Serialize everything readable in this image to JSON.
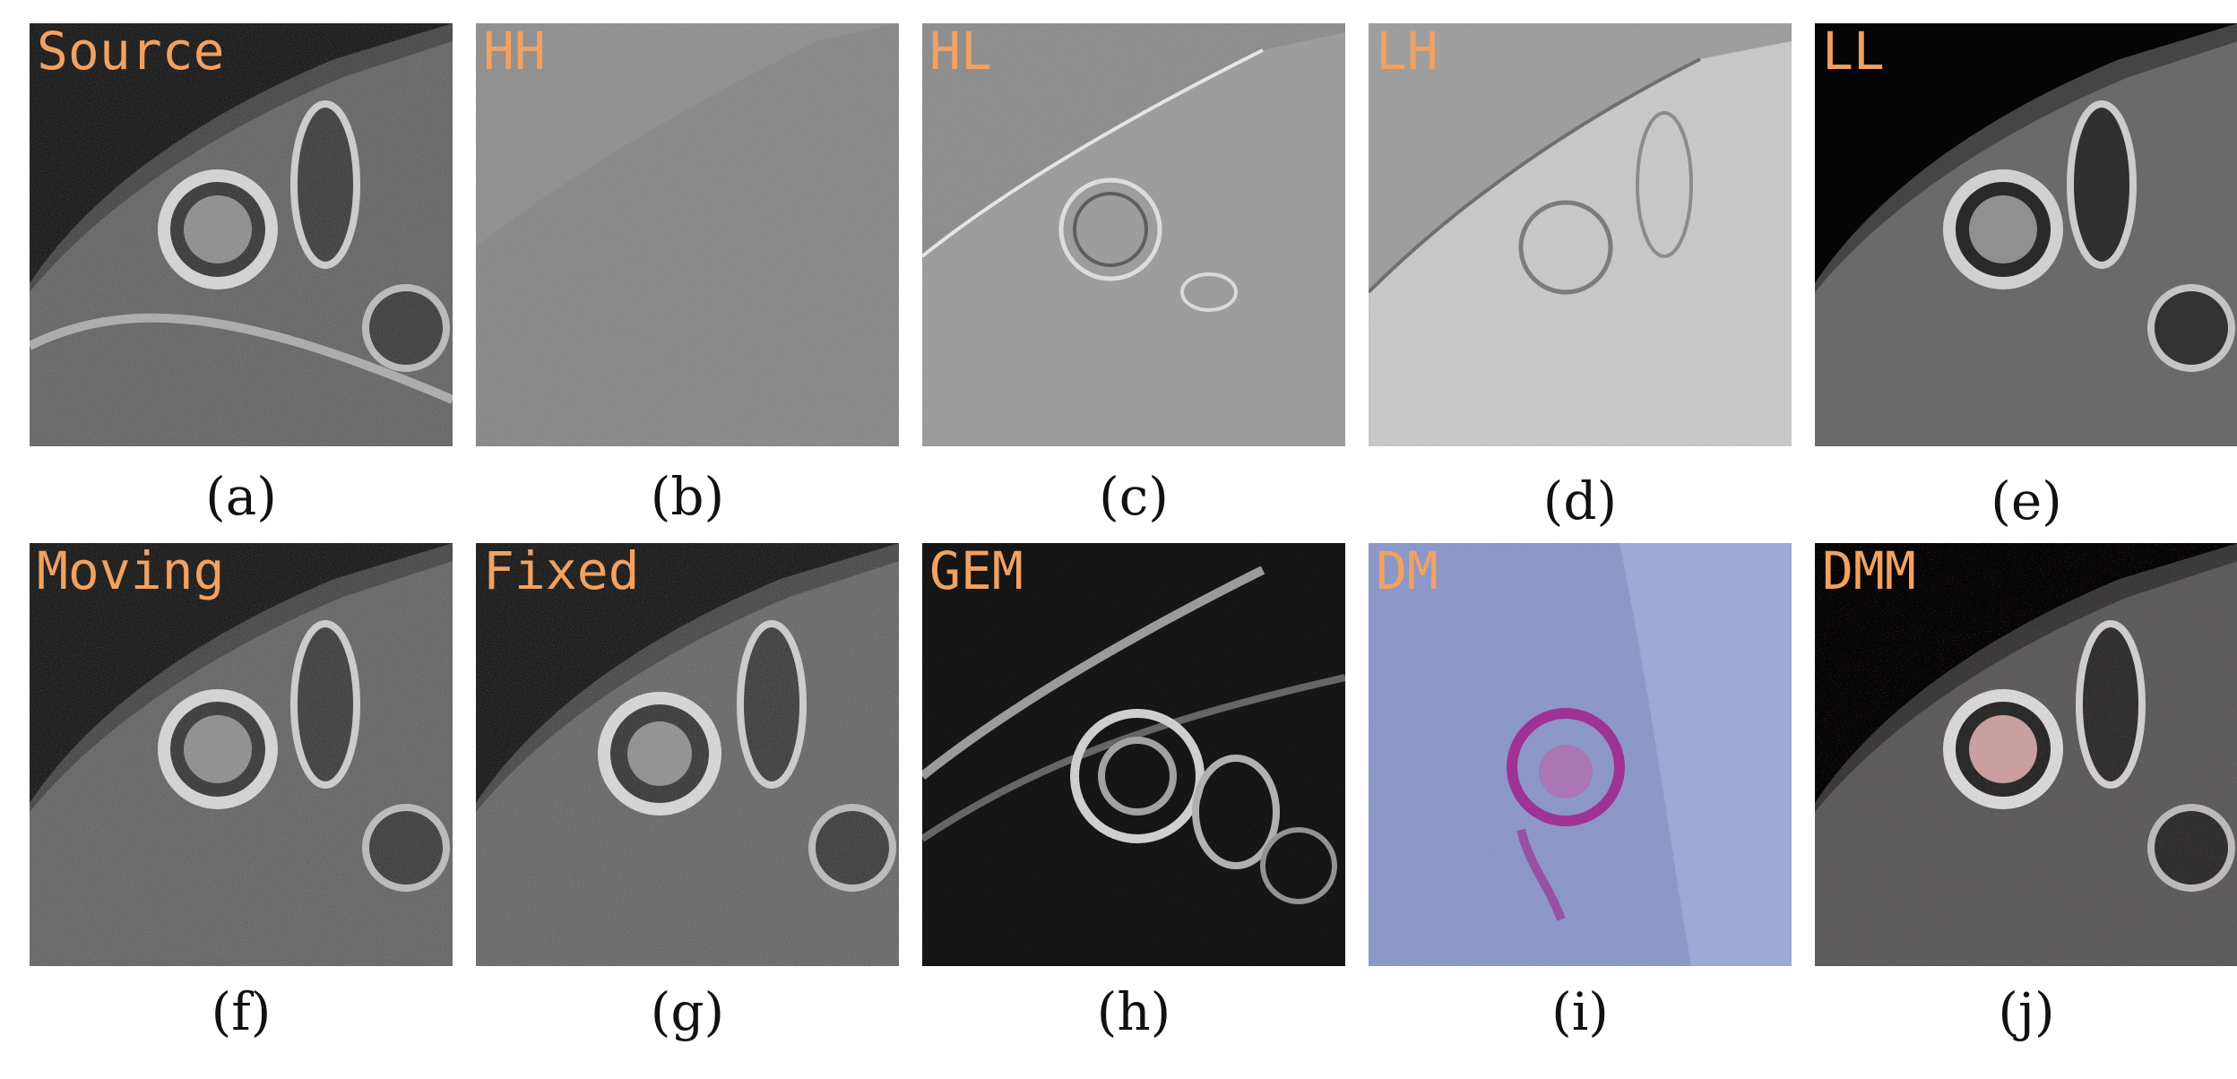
{
  "panels": [
    {
      "id": "a",
      "label": "Source",
      "caption": "(a)",
      "style": "mri-dark"
    },
    {
      "id": "b",
      "label": "HH",
      "caption": "(b)",
      "style": "wavelet-gray"
    },
    {
      "id": "c",
      "label": "HL",
      "caption": "(c)",
      "style": "wavelet-gray"
    },
    {
      "id": "d",
      "label": "LH",
      "caption": "(d)",
      "style": "wavelet-light"
    },
    {
      "id": "e",
      "label": "LL",
      "caption": "(e)",
      "style": "mri-dark"
    },
    {
      "id": "f",
      "label": "Moving",
      "caption": "(f)",
      "style": "mri-dark"
    },
    {
      "id": "g",
      "label": "Fixed",
      "caption": "(g)",
      "style": "mri-dark"
    },
    {
      "id": "h",
      "label": "GEM",
      "caption": "(h)",
      "style": "edge-map"
    },
    {
      "id": "i",
      "label": "DM",
      "caption": "(i)",
      "style": "deformation-purple"
    },
    {
      "id": "j",
      "label": "DMM",
      "caption": "(j)",
      "style": "overlay-red"
    }
  ],
  "colors": {
    "label": "#f2a160",
    "dm_background": "#8a96c8",
    "dm_highlight": "#a0208c",
    "dmm_overlay": "#e0201c"
  }
}
